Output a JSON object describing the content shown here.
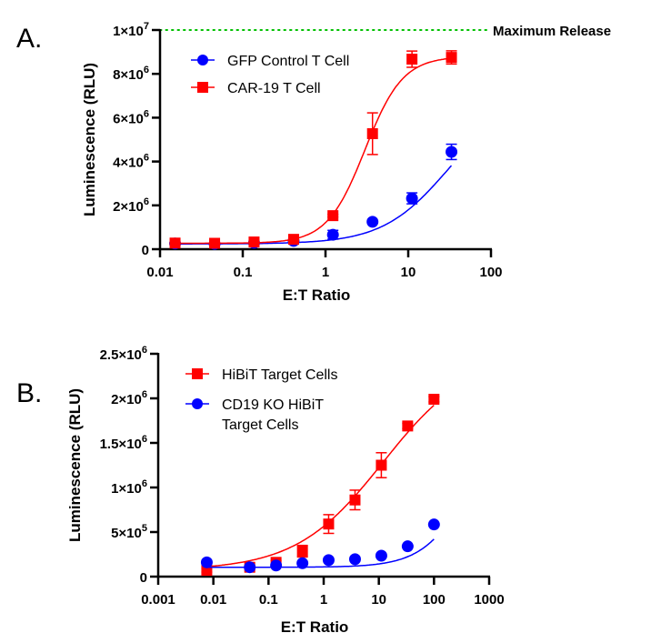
{
  "chart_data": [
    {
      "panel": "A.",
      "type": "scatter",
      "xscale": "log",
      "xlabel": "E:T Ratio",
      "ylabel": "Luminescence (RLU)",
      "xlim": [
        0.01,
        100
      ],
      "ylim": [
        0,
        10000000
      ],
      "xticks": [
        {
          "v": 0.01,
          "label": "0.01"
        },
        {
          "v": 0.1,
          "label": "0.1"
        },
        {
          "v": 1,
          "label": "1"
        },
        {
          "v": 10,
          "label": "10"
        },
        {
          "v": 100,
          "label": "100"
        }
      ],
      "yticks": [
        {
          "v": 0,
          "label": "0"
        },
        {
          "v": 2000000,
          "label": "2×10",
          "exp": "6"
        },
        {
          "v": 4000000,
          "label": "4×10",
          "exp": "6"
        },
        {
          "v": 6000000,
          "label": "6×10",
          "exp": "6"
        },
        {
          "v": 8000000,
          "label": "8×10",
          "exp": "6"
        },
        {
          "v": 10000000,
          "label": "1×10",
          "exp": "7"
        }
      ],
      "reference_line": {
        "y": 10000000,
        "label": "Maximum Release",
        "color": "#00c000",
        "style": "dotted"
      },
      "legend_position": "top-left",
      "series": [
        {
          "name": "GFP Control T Cell",
          "color": "#0000ff",
          "marker": "circle",
          "x": [
            0.0152,
            0.0457,
            0.137,
            0.412,
            1.23,
            3.7,
            11.1,
            33.3
          ],
          "y": [
            260000,
            240000,
            290000,
            380000,
            660000,
            1250000,
            2320000,
            4440000
          ],
          "err": [
            40000,
            40000,
            40000,
            40000,
            200000,
            50000,
            250000,
            350000
          ]
        },
        {
          "name": "CAR-19 T Cell",
          "color": "#ff0000",
          "marker": "square",
          "x": [
            0.0152,
            0.0457,
            0.137,
            0.412,
            1.23,
            3.7,
            11.1,
            33.3
          ],
          "y": [
            280000,
            270000,
            330000,
            450000,
            1530000,
            5270000,
            8670000,
            8750000
          ],
          "err": [
            40000,
            40000,
            40000,
            40000,
            60000,
            950000,
            370000,
            300000
          ]
        }
      ]
    },
    {
      "panel": "B.",
      "type": "scatter",
      "xscale": "log",
      "xlabel": "E:T Ratio",
      "ylabel": "Luminescence (RLU)",
      "xlim": [
        0.001,
        1000
      ],
      "ylim": [
        0,
        2500000
      ],
      "xticks": [
        {
          "v": 0.001,
          "label": "0.001"
        },
        {
          "v": 0.01,
          "label": "0.01"
        },
        {
          "v": 0.1,
          "label": "0.1"
        },
        {
          "v": 1,
          "label": "1"
        },
        {
          "v": 10,
          "label": "10"
        },
        {
          "v": 100,
          "label": "100"
        },
        {
          "v": 1000,
          "label": "1000"
        }
      ],
      "yticks": [
        {
          "v": 0,
          "label": "0"
        },
        {
          "v": 500000,
          "label": "5×10",
          "exp": "5"
        },
        {
          "v": 1000000,
          "label": "1×10",
          "exp": "6"
        },
        {
          "v": 1500000,
          "label": "1.5×10",
          "exp": "6"
        },
        {
          "v": 2000000,
          "label": "2×10",
          "exp": "6"
        },
        {
          "v": 2500000,
          "label": "2.5×10",
          "exp": "6"
        }
      ],
      "legend_position": "top-left",
      "series": [
        {
          "name": "HiBiT Target Cells",
          "color": "#ff0000",
          "marker": "square",
          "x": [
            0.0076,
            0.0457,
            0.137,
            0.412,
            1.23,
            3.7,
            11.1,
            33.3,
            100
          ],
          "y": [
            70000,
            105000,
            160000,
            285000,
            590000,
            860000,
            1250000,
            1690000,
            1990000
          ],
          "err": [
            20000,
            20000,
            20000,
            65000,
            105000,
            110000,
            140000,
            30000,
            30000
          ]
        },
        {
          "name": "CD19 KO HiBiT Target Cells",
          "name_lines": [
            "CD19 KO HiBiT",
            "Target Cells"
          ],
          "color": "#0000ff",
          "marker": "circle",
          "x": [
            0.0076,
            0.0457,
            0.137,
            0.412,
            1.23,
            3.7,
            11.1,
            33.3,
            100
          ],
          "y": [
            160000,
            105000,
            125000,
            150000,
            185000,
            195000,
            235000,
            340000,
            585000
          ],
          "err": [
            0,
            0,
            0,
            0,
            0,
            0,
            0,
            0,
            0
          ]
        }
      ]
    }
  ]
}
